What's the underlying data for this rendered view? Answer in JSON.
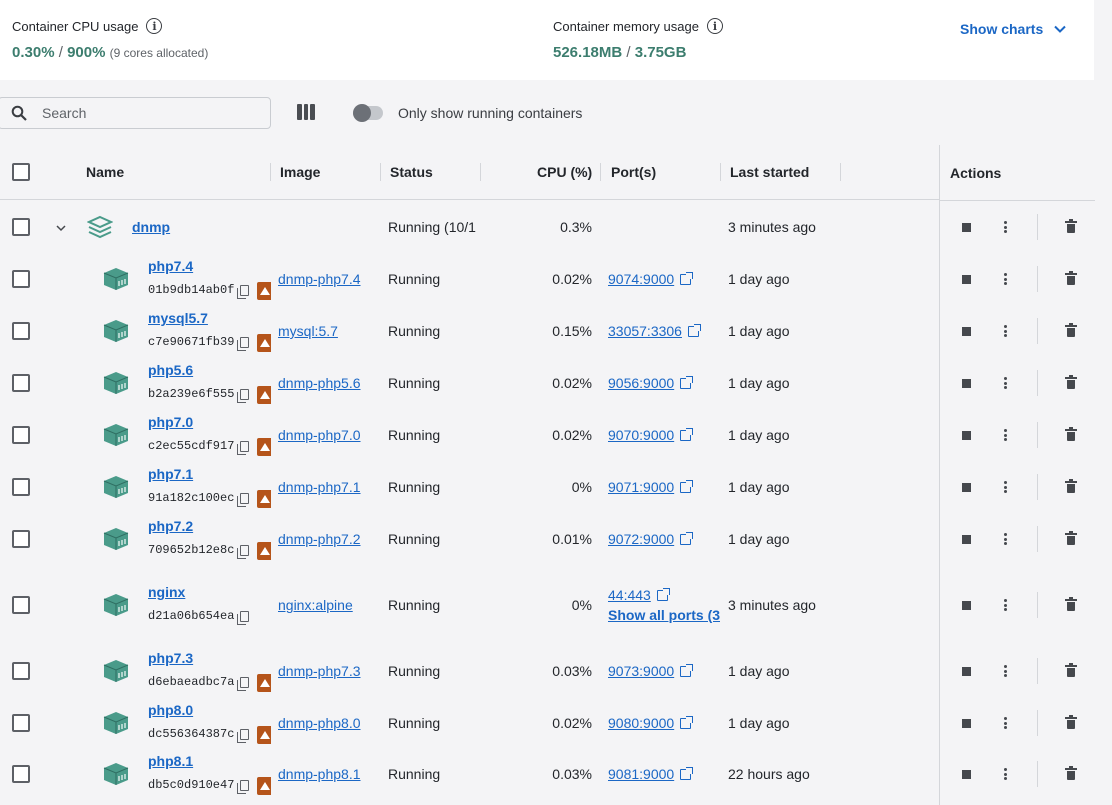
{
  "stats": {
    "cpu": {
      "label": "Container CPU usage",
      "value": "0.30%",
      "separator": "/",
      "total": "900%",
      "note": "(9 cores allocated)"
    },
    "memory": {
      "label": "Container memory usage",
      "value": "526.18MB",
      "separator": "/",
      "total": "3.75GB"
    },
    "show_charts_label": "Show charts"
  },
  "toolbar": {
    "search_placeholder": "Search",
    "toggle_label": "Only show running containers",
    "toggle_on": false
  },
  "table": {
    "headers": {
      "name": "Name",
      "image": "Image",
      "status": "Status",
      "cpu": "CPU (%)",
      "ports": "Port(s)",
      "last_started": "Last started",
      "actions": "Actions"
    },
    "group": {
      "name": "dnmp",
      "status": "Running (10/1",
      "cpu": "0.3%",
      "last_started": "3 minutes ago"
    },
    "rows": [
      {
        "name": "php7.4",
        "id": "01b9db14ab0f",
        "image": "dnmp-php7.4",
        "status": "Running",
        "cpu": "0.02%",
        "port": "9074:9000",
        "last_started": "1 day ago",
        "warn": true
      },
      {
        "name": "mysql5.7",
        "id": "c7e90671fb39",
        "image": "mysql:5.7",
        "status": "Running",
        "cpu": "0.15%",
        "port": "33057:3306",
        "last_started": "1 day ago",
        "warn": true
      },
      {
        "name": "php5.6",
        "id": "b2a239e6f555",
        "image": "dnmp-php5.6",
        "status": "Running",
        "cpu": "0.02%",
        "port": "9056:9000",
        "last_started": "1 day ago",
        "warn": true
      },
      {
        "name": "php7.0",
        "id": "c2ec55cdf917",
        "image": "dnmp-php7.0",
        "status": "Running",
        "cpu": "0.02%",
        "port": "9070:9000",
        "last_started": "1 day ago",
        "warn": true
      },
      {
        "name": "php7.1",
        "id": "91a182c100ec",
        "image": "dnmp-php7.1",
        "status": "Running",
        "cpu": "0%",
        "port": "9071:9000",
        "last_started": "1 day ago",
        "warn": true
      },
      {
        "name": "php7.2",
        "id": "709652b12e8c",
        "image": "dnmp-php7.2",
        "status": "Running",
        "cpu": "0.01%",
        "port": "9072:9000",
        "last_started": "1 day ago",
        "warn": true
      },
      {
        "name": "nginx",
        "id": "d21a06b654ea",
        "image": "nginx:alpine",
        "status": "Running",
        "cpu": "0%",
        "port": "44:443",
        "extra_ports": "Show all ports (3",
        "last_started": "3 minutes ago",
        "warn": false
      },
      {
        "name": "php7.3",
        "id": "d6ebaeadbc7a",
        "image": "dnmp-php7.3",
        "status": "Running",
        "cpu": "0.03%",
        "port": "9073:9000",
        "last_started": "1 day ago",
        "warn": true
      },
      {
        "name": "php8.0",
        "id": "dc556364387c",
        "image": "dnmp-php8.0",
        "status": "Running",
        "cpu": "0.02%",
        "port": "9080:9000",
        "last_started": "1 day ago",
        "warn": true
      },
      {
        "name": "php8.1",
        "id": "db5c0d910e47",
        "image": "dnmp-php8.1",
        "status": "Running",
        "cpu": "0.03%",
        "port": "9081:9000",
        "last_started": "22 hours ago",
        "warn": true
      }
    ]
  },
  "colors": {
    "accent": "#1b67c5",
    "stat_value": "#3c7d6e",
    "container_icon": "#4a9b8a",
    "warning": "#b5541a"
  },
  "icons": {
    "info": "info-icon",
    "chevron": "chevron-down-icon",
    "search": "search-icon",
    "columns": "columns-icon",
    "stack": "stack-icon",
    "container": "container-icon",
    "copy": "copy-icon",
    "warning": "warning-icon",
    "external": "external-link-icon",
    "stop": "stop-icon",
    "more": "more-icon",
    "trash": "trash-icon"
  }
}
